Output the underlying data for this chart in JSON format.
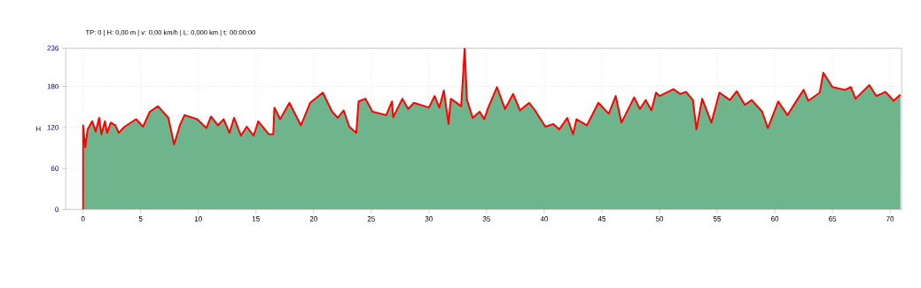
{
  "chart_data": {
    "type": "area",
    "title": "TP: 0 | H: 0,00 m | v: 0,00 km/h | L: 0,000 km | t: 00:00:00",
    "ylabel": "H",
    "x": [
      0,
      0,
      0.2,
      0.4,
      0.8,
      1.1,
      1.4,
      1.6,
      1.9,
      2.1,
      2.4,
      2.8,
      3.1,
      3.6,
      4.6,
      5.2,
      5.8,
      6.5,
      7.4,
      7.9,
      8.4,
      8.8,
      9.9,
      10.7,
      11.1,
      11.7,
      12.2,
      12.7,
      13.1,
      13.7,
      14.2,
      14.8,
      15.2,
      16.1,
      16.5,
      16.6,
      17.1,
      17.9,
      18.9,
      19.7,
      20.8,
      21.6,
      22.1,
      22.6,
      23.1,
      23.7,
      23.9,
      24.5,
      25.1,
      26.3,
      26.8,
      26.9,
      27.7,
      28.2,
      28.7,
      30.0,
      30.5,
      30.9,
      31.3,
      31.7,
      31.9,
      32.8,
      33.1,
      33.3,
      33.8,
      34.4,
      34.8,
      35.1,
      35.9,
      36.6,
      37.3,
      37.9,
      38.7,
      39.2,
      40.1,
      40.8,
      41.3,
      42.0,
      42.5,
      42.8,
      43.7,
      44.7,
      45.6,
      46.2,
      46.7,
      47.8,
      48.3,
      48.8,
      49.3,
      49.7,
      50.0,
      51.2,
      51.8,
      52.3,
      52.9,
      53.2,
      53.7,
      54.5,
      55.2,
      56.1,
      56.7,
      57.4,
      58.0,
      58.9,
      59.4,
      60.3,
      61.1,
      62.0,
      62.5,
      62.9,
      63.9,
      64.2,
      65.0,
      66.1,
      66.6,
      67.0,
      68.2,
      68.8,
      69.6,
      70.3,
      70.9
    ],
    "series": [
      {
        "color": "#6eb48c",
        "values": [
          0,
          123,
          91,
          117,
          129,
          114,
          134,
          110,
          129,
          112,
          127,
          123,
          112,
          121,
          132,
          121,
          143,
          151,
          134,
          95,
          123,
          138,
          132,
          119,
          136,
          123,
          132,
          112,
          134,
          108,
          121,
          108,
          129,
          110,
          110,
          149,
          132,
          156,
          123,
          156,
          171,
          143,
          134,
          145,
          121,
          112,
          158,
          162,
          143,
          138,
          158,
          135,
          162,
          147,
          156,
          149,
          166,
          149,
          174,
          125,
          162,
          151,
          236,
          160,
          134,
          143,
          132,
          147,
          179,
          147,
          169,
          145,
          156,
          145,
          121,
          125,
          117,
          134,
          110,
          132,
          123,
          156,
          140,
          166,
          127,
          164,
          147,
          160,
          145,
          171,
          166,
          176,
          169,
          172,
          160,
          117,
          162,
          127,
          171,
          160,
          173,
          153,
          160,
          143,
          119,
          158,
          138,
          162,
          175,
          159,
          171,
          200,
          179,
          175,
          179,
          162,
          182,
          166,
          172,
          159,
          168
        ]
      }
    ],
    "xlim": [
      -1.5,
      71
    ],
    "ylim": [
      0,
      236
    ],
    "xticks": [
      0,
      5,
      10,
      15,
      20,
      25,
      30,
      35,
      40,
      45,
      50,
      55,
      60,
      65,
      70
    ],
    "yticks": [
      0,
      60,
      120,
      180,
      236
    ],
    "grid": true
  }
}
